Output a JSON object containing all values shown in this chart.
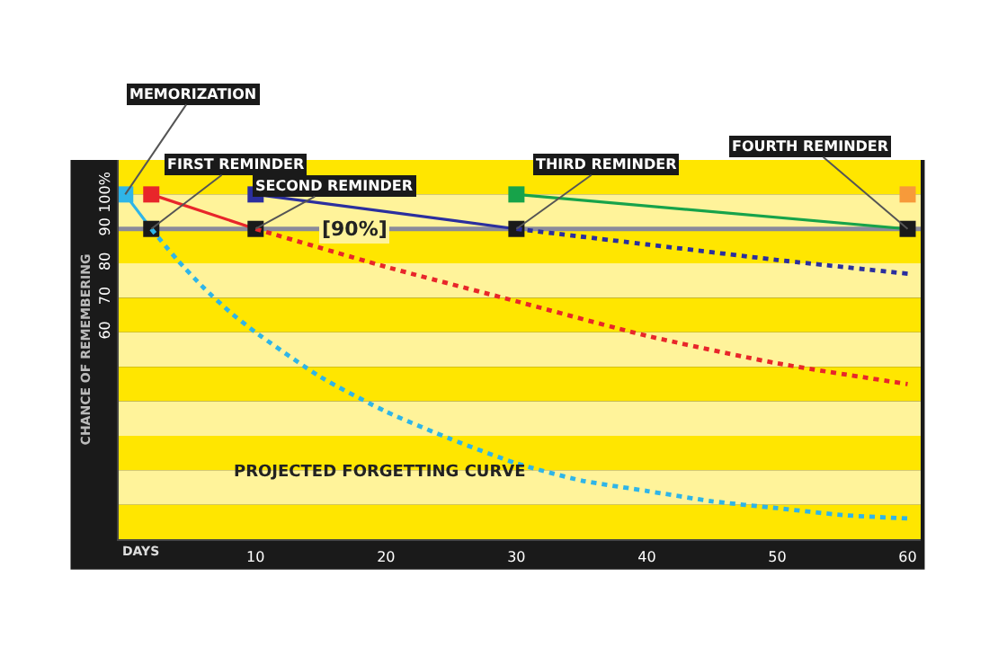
{
  "chart_data": {
    "type": "line",
    "xlabel": "DAYS",
    "ylabel": "CHANCE OF REMEMBERING",
    "xlim": [
      -0.5,
      61
    ],
    "xticks": [
      10,
      20,
      30,
      40,
      50,
      60
    ],
    "ylim": [
      0,
      110
    ],
    "yticks": [
      {
        "value": 100,
        "label": "100%"
      },
      90,
      80,
      70,
      60
    ],
    "grid": false,
    "series": [
      {
        "color": "#2fb5e8",
        "colors": [
          "#2fb5e8",
          "#1a1a1a"
        ],
        "marker": "square",
        "line_style": "solid",
        "x": [
          0,
          2
        ],
        "values": [
          100,
          90
        ]
      },
      {
        "color": "#2fb5e8",
        "marker": "none",
        "line_style": "dotted",
        "x": [
          2,
          4,
          6,
          8,
          10,
          15,
          20,
          25,
          30,
          35,
          40,
          45,
          50,
          55,
          60
        ],
        "values": [
          90,
          81,
          73,
          66,
          60,
          47,
          37,
          29,
          22,
          17,
          14,
          11,
          9,
          7,
          6
        ]
      },
      {
        "color": "#e8262a",
        "colors": [
          "#e8262a",
          "#1a1a1a"
        ],
        "marker": "square",
        "line_style": "solid",
        "x": [
          2,
          10
        ],
        "values": [
          100,
          90
        ]
      },
      {
        "color": "#e8262a",
        "marker": "none",
        "line_style": "dotted",
        "x": [
          10,
          20,
          30,
          40,
          50,
          60
        ],
        "values": [
          90,
          79,
          69,
          59,
          51,
          45
        ]
      },
      {
        "color": "#2b2f9e",
        "colors": [
          "#2b2f9e",
          "#1a1a1a"
        ],
        "marker": "square",
        "line_style": "solid",
        "x": [
          10,
          30
        ],
        "values": [
          100,
          90
        ]
      },
      {
        "color": "#2b2f9e",
        "marker": "none",
        "line_style": "dotted",
        "x": [
          30,
          40,
          50,
          60
        ],
        "values": [
          90,
          85.5,
          81,
          77
        ]
      },
      {
        "color": "#17a34a",
        "colors": [
          "#17a34a",
          "#1a1a1a"
        ],
        "marker": "square",
        "line_style": "solid",
        "x": [
          30,
          60
        ],
        "values": [
          100,
          90
        ]
      },
      {
        "type": "scatter",
        "color": "#f79a3a",
        "marker": "square",
        "x": [
          60
        ],
        "values": [
          100
        ]
      }
    ],
    "ref_lines": [
      {
        "axis": "y",
        "value": 90,
        "label": "[90%]",
        "color": "#8a8a9a"
      }
    ],
    "bands": [
      {
        "axis": "y",
        "from": 100,
        "to": 110,
        "color": "#ffe600"
      },
      {
        "axis": "y",
        "from": 90,
        "to": 100,
        "color": "#fff39a"
      },
      {
        "axis": "y",
        "from": 80,
        "to": 90,
        "color": "#ffe600"
      },
      {
        "axis": "y",
        "from": 70,
        "to": 80,
        "color": "#fff39a"
      },
      {
        "axis": "y",
        "from": 60,
        "to": 70,
        "color": "#ffe600"
      },
      {
        "axis": "y",
        "from": 50,
        "to": 60,
        "color": "#fff39a"
      },
      {
        "axis": "y",
        "from": 40,
        "to": 50,
        "color": "#ffe600"
      },
      {
        "axis": "y",
        "from": 30,
        "to": 40,
        "color": "#fff39a"
      },
      {
        "axis": "y",
        "from": 20,
        "to": 30,
        "color": "#ffe600"
      },
      {
        "axis": "y",
        "from": 10,
        "to": 20,
        "color": "#fff39a"
      },
      {
        "axis": "y",
        "from": 0,
        "to": 10,
        "color": "#ffe600"
      }
    ],
    "annotations": [
      {
        "text": "MEMORIZATION",
        "x": 0,
        "y": 100
      },
      {
        "text": "FIRST REMINDER",
        "x": 2,
        "y": 90
      },
      {
        "text": "SECOND REMINDER",
        "x": 10,
        "y": 90
      },
      {
        "text": "THIRD REMINDER",
        "x": 30,
        "y": 90
      },
      {
        "text": "FOURTH REMINDER",
        "x": 60,
        "y": 90
      },
      "PROJECTED FORGETTING CURVE"
    ]
  }
}
